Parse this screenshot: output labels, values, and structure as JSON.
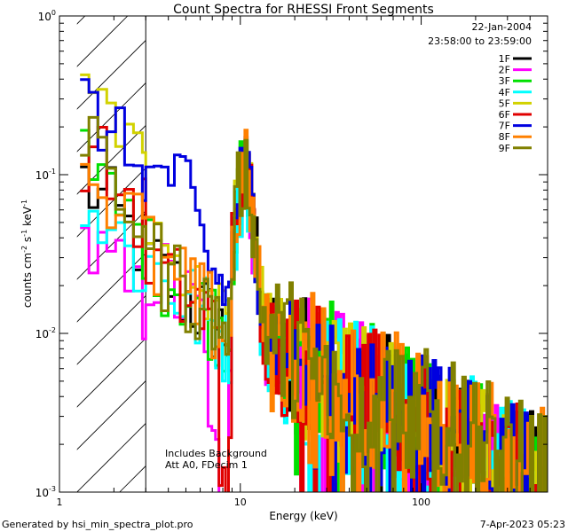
{
  "chart_data": {
    "type": "line",
    "title": "Count Spectra for RHESSI Front Segments",
    "xlabel": "Energy (keV)",
    "ylabel": "counts cm",
    "ylabel_units": {
      "cm_exp": "-2",
      "s": " s",
      "s_exp": "-1",
      "kev": " keV",
      "kev_exp": "-1"
    },
    "xscale": "log",
    "yscale": "log",
    "xlim": [
      1,
      500
    ],
    "ylim": [
      0.001,
      1
    ],
    "x_ticks": [
      {
        "v": 1,
        "label": "1"
      },
      {
        "v": 10,
        "label": "10"
      },
      {
        "v": 100,
        "label": "100"
      }
    ],
    "y_ticks": [
      {
        "v": 1,
        "base": "10",
        "exp": "0"
      },
      {
        "v": 0.1,
        "base": "10",
        "exp": "-1"
      },
      {
        "v": 0.01,
        "base": "10",
        "exp": "-2"
      },
      {
        "v": 0.001,
        "base": "10",
        "exp": "-3"
      }
    ],
    "date": "22-Jan-2004",
    "time_range": "23:58:00 to 23:59:00",
    "annotations": [
      "Includes Background",
      "Att A0, FDecim 1"
    ],
    "hatched_region_x": [
      1.25,
      3.0
    ],
    "series": [
      {
        "name": "1F",
        "color": "#000000"
      },
      {
        "name": "2F",
        "color": "#ff00ff"
      },
      {
        "name": "3F",
        "color": "#00e000"
      },
      {
        "name": "4F",
        "color": "#00ffff"
      },
      {
        "name": "5F",
        "color": "#d2d200"
      },
      {
        "name": "6F",
        "color": "#e00000"
      },
      {
        "name": "7F",
        "color": "#0000e0"
      },
      {
        "name": "8F",
        "color": "#ff8000"
      },
      {
        "name": "9F",
        "color": "#808000"
      }
    ]
  },
  "footer": {
    "generated_by": "Generated by hsi_min_spectra_plot.pro",
    "timestamp": "7-Apr-2023 05:23"
  }
}
